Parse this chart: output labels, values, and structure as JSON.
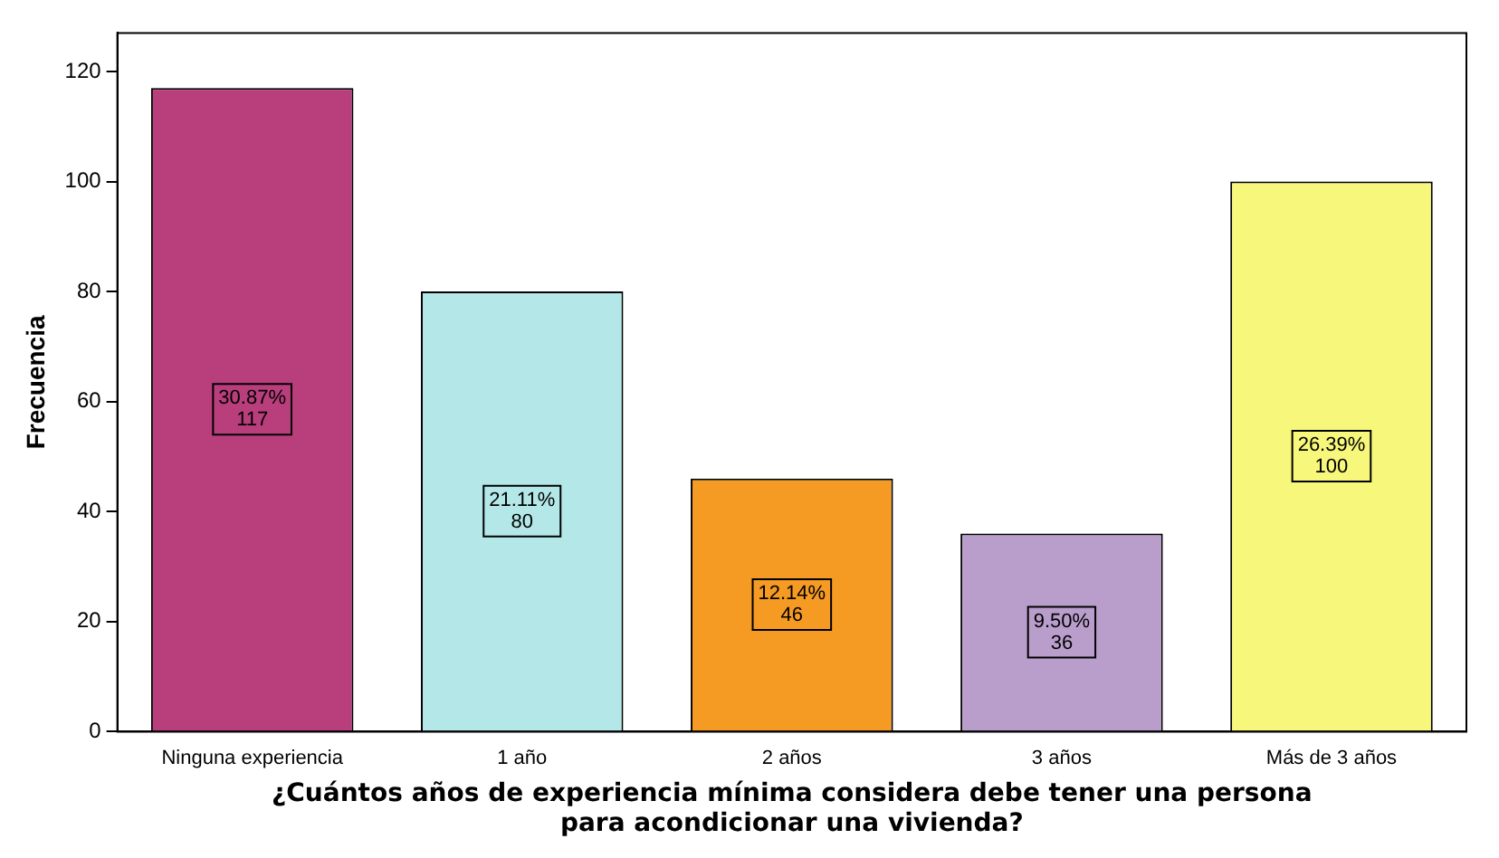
{
  "chart_data": {
    "type": "bar",
    "xlabel": "¿Cuántos años de experiencia mínima considera debe tener una persona\npara acondicionar una vivienda?",
    "ylabel": "Frecuencia",
    "categories": [
      "Ninguna experiencia",
      "1 año",
      "2 años",
      "3 años",
      "Más de 3 años"
    ],
    "values": [
      117,
      80,
      46,
      36,
      100
    ],
    "colors": [
      "#b83e7c",
      "#b4e8e8",
      "#f59a23",
      "#b99ecb",
      "#f7f77c"
    ],
    "value_labels": [
      "30.87%\n117",
      "21.11%\n80",
      "12.14%\n46",
      "9.50%\n36",
      "26.39%\n100"
    ],
    "ylim": [
      0,
      127
    ],
    "yticks": [
      0,
      20,
      40,
      60,
      80,
      100,
      120
    ],
    "grid": false
  }
}
